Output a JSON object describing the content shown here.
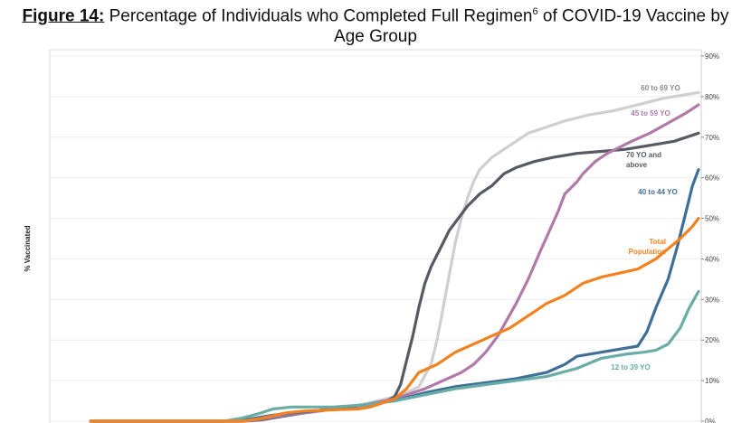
{
  "figure": {
    "label": "Figure 14:",
    "title_main": " Percentage of Individuals who Completed Full Regimen",
    "title_sup": "6",
    "title_rest": " of COVID-19 Vaccine by",
    "title_line2": "Age Group"
  },
  "chart_data": {
    "type": "line",
    "title": "Percentage of Individuals who Completed Full Regimen of COVID-19 Vaccine by Age Group",
    "ylabel": "% Vaccinated",
    "xlabel": "",
    "ylim": [
      0,
      90
    ],
    "yticks": [
      "0%",
      "10%",
      "20%",
      "30%",
      "40%",
      "50%",
      "60%",
      "70%",
      "80%",
      "90%"
    ],
    "ytick_values": [
      0,
      10,
      20,
      30,
      40,
      50,
      60,
      70,
      80,
      90
    ],
    "grid": true,
    "x_range": [
      0,
      100
    ],
    "series": [
      {
        "name": "60 to 69 YO",
        "color": "#cfcfcf",
        "points": [
          [
            0,
            0
          ],
          [
            22,
            0
          ],
          [
            26,
            0.5
          ],
          [
            30,
            1.5
          ],
          [
            35,
            2.3
          ],
          [
            40,
            3
          ],
          [
            45,
            4.2
          ],
          [
            50,
            6
          ],
          [
            52,
            7
          ],
          [
            54,
            8.5
          ],
          [
            56,
            14
          ],
          [
            57,
            20
          ],
          [
            58,
            28
          ],
          [
            59,
            36
          ],
          [
            60,
            44
          ],
          [
            61,
            50
          ],
          [
            62,
            55
          ],
          [
            63,
            59
          ],
          [
            64,
            62
          ],
          [
            66,
            65
          ],
          [
            68,
            67
          ],
          [
            70,
            69
          ],
          [
            72,
            71
          ],
          [
            75,
            72.5
          ],
          [
            78,
            74
          ],
          [
            82,
            75.5
          ],
          [
            86,
            76.5
          ],
          [
            90,
            78
          ],
          [
            94,
            79.5
          ],
          [
            98,
            80.5
          ],
          [
            100,
            81
          ]
        ]
      },
      {
        "name": "70 YO and above",
        "color": "#555a63",
        "points": [
          [
            0,
            0
          ],
          [
            25,
            0
          ],
          [
            28,
            0.3
          ],
          [
            32,
            1.3
          ],
          [
            35,
            2
          ],
          [
            40,
            3
          ],
          [
            45,
            4
          ],
          [
            48,
            4.5
          ],
          [
            50,
            6
          ],
          [
            51,
            9
          ],
          [
            52,
            15
          ],
          [
            53,
            21
          ],
          [
            54,
            28
          ],
          [
            55,
            34
          ],
          [
            56,
            38
          ],
          [
            57,
            41
          ],
          [
            58,
            44
          ],
          [
            59,
            47
          ],
          [
            60,
            49
          ],
          [
            62,
            53
          ],
          [
            64,
            56
          ],
          [
            66,
            58
          ],
          [
            68,
            61
          ],
          [
            70,
            62.5
          ],
          [
            73,
            64
          ],
          [
            76,
            65
          ],
          [
            80,
            66
          ],
          [
            84,
            66.5
          ],
          [
            88,
            67
          ],
          [
            92,
            68
          ],
          [
            96,
            69
          ],
          [
            100,
            71
          ]
        ]
      },
      {
        "name": "45 to 59 YO",
        "color": "#b07aa8",
        "points": [
          [
            0,
            0
          ],
          [
            25,
            0
          ],
          [
            28,
            0.5
          ],
          [
            32,
            1.5
          ],
          [
            35,
            2
          ],
          [
            40,
            3
          ],
          [
            45,
            4
          ],
          [
            50,
            5.5
          ],
          [
            55,
            8
          ],
          [
            58,
            10
          ],
          [
            61,
            12
          ],
          [
            63,
            14
          ],
          [
            65,
            17
          ],
          [
            67,
            21
          ],
          [
            68.5,
            25
          ],
          [
            70,
            29
          ],
          [
            72,
            35
          ],
          [
            74,
            42
          ],
          [
            75.5,
            47
          ],
          [
            77,
            52
          ],
          [
            78,
            56
          ],
          [
            80,
            59
          ],
          [
            81,
            61
          ],
          [
            83,
            64
          ],
          [
            85,
            66
          ],
          [
            87,
            67.5
          ],
          [
            89,
            69
          ],
          [
            92,
            71
          ],
          [
            95,
            73.5
          ],
          [
            98,
            76
          ],
          [
            100,
            78
          ]
        ]
      },
      {
        "name": "40 to 44 YO",
        "color": "#3e6f96",
        "points": [
          [
            0,
            0
          ],
          [
            22,
            0
          ],
          [
            26,
            0.5
          ],
          [
            30,
            1.5
          ],
          [
            35,
            2.3
          ],
          [
            40,
            3
          ],
          [
            45,
            4
          ],
          [
            50,
            5
          ],
          [
            55,
            7
          ],
          [
            60,
            8.5
          ],
          [
            65,
            9.5
          ],
          [
            70,
            10.5
          ],
          [
            75,
            12
          ],
          [
            78,
            14
          ],
          [
            80,
            16
          ],
          [
            84,
            17
          ],
          [
            88,
            18
          ],
          [
            90,
            18.5
          ],
          [
            91.5,
            22
          ],
          [
            93,
            28
          ],
          [
            95,
            35
          ],
          [
            96.5,
            43
          ],
          [
            98,
            52
          ],
          [
            99,
            58
          ],
          [
            100,
            62
          ]
        ]
      },
      {
        "name": "12 to 39 YO",
        "color": "#6aaca6",
        "points": [
          [
            0,
            0
          ],
          [
            22,
            0
          ],
          [
            25,
            0.8
          ],
          [
            28,
            2
          ],
          [
            30,
            3
          ],
          [
            33,
            3.5
          ],
          [
            40,
            3.5
          ],
          [
            45,
            4
          ],
          [
            50,
            5
          ],
          [
            55,
            6.5
          ],
          [
            60,
            8
          ],
          [
            65,
            9
          ],
          [
            70,
            10
          ],
          [
            75,
            11
          ],
          [
            80,
            13
          ],
          [
            84,
            15.5
          ],
          [
            88,
            16.5
          ],
          [
            91,
            17
          ],
          [
            93,
            17.5
          ],
          [
            95,
            19
          ],
          [
            97,
            23
          ],
          [
            98.5,
            28
          ],
          [
            100,
            32
          ]
        ]
      },
      {
        "name": "Total Population",
        "color": "#f28220",
        "points": [
          [
            0,
            0
          ],
          [
            25,
            0
          ],
          [
            28,
            0.7
          ],
          [
            32,
            2
          ],
          [
            35,
            2.5
          ],
          [
            40,
            2.8
          ],
          [
            44,
            3
          ],
          [
            46,
            3.5
          ],
          [
            48,
            4.5
          ],
          [
            50,
            5.5
          ],
          [
            52,
            8
          ],
          [
            54,
            12
          ],
          [
            57,
            14
          ],
          [
            60,
            17
          ],
          [
            63,
            19
          ],
          [
            66,
            21
          ],
          [
            69,
            23
          ],
          [
            72,
            26
          ],
          [
            75,
            29
          ],
          [
            78,
            31
          ],
          [
            81,
            34
          ],
          [
            84,
            35.5
          ],
          [
            87,
            36.5
          ],
          [
            90,
            37.5
          ],
          [
            93,
            40
          ],
          [
            95,
            42.5
          ],
          [
            97,
            45
          ],
          [
            99,
            48
          ],
          [
            100,
            50
          ]
        ]
      }
    ]
  }
}
